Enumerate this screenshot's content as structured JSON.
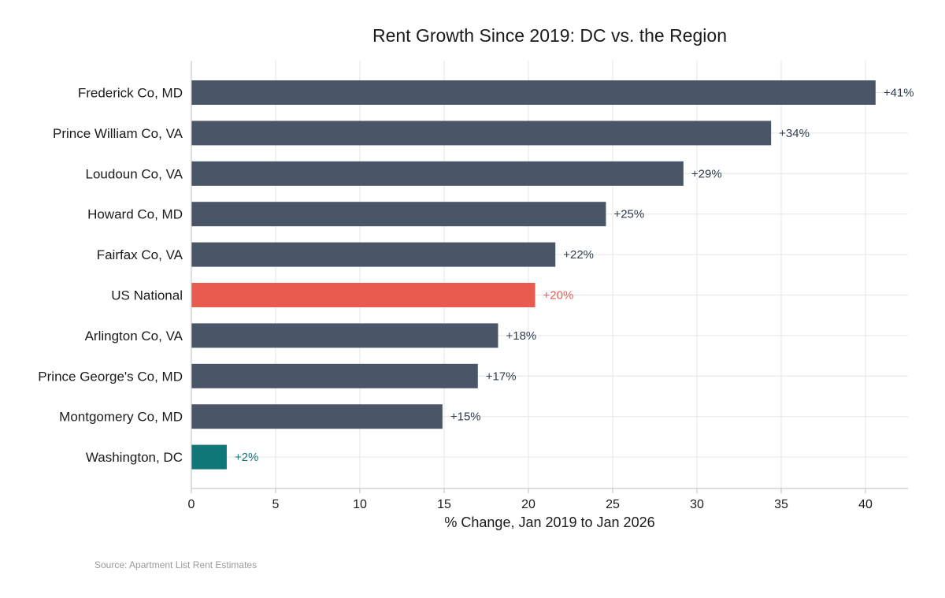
{
  "chart_data": {
    "type": "bar",
    "orientation": "horizontal",
    "title": "Rent Growth Since 2019: DC vs. the Region",
    "xlabel": "% Change, Jan 2019 to Jan 2026",
    "ylabel": "",
    "xlim": [
      0,
      42.5
    ],
    "xticks": [
      "0",
      "5",
      "10",
      "15",
      "20",
      "25",
      "30",
      "35",
      "40"
    ],
    "grid": true,
    "categories": [
      "Frederick Co, MD",
      "Prince William Co, VA",
      "Loudoun Co, VA",
      "Howard Co, MD",
      "Fairfax Co, VA",
      "US National",
      "Arlington Co, VA",
      "Prince George's Co, MD",
      "Montgomery Co, MD",
      "Washington, DC"
    ],
    "values": [
      40.6,
      34.4,
      29.2,
      24.6,
      21.6,
      20.4,
      18.2,
      17.0,
      14.9,
      2.1
    ],
    "data_labels": [
      "+41%",
      "+34%",
      "+29%",
      "+25%",
      "+22%",
      "+20%",
      "+18%",
      "+17%",
      "+15%",
      "+2%"
    ],
    "colors": [
      "#4a5568",
      "#4a5568",
      "#4a5568",
      "#4a5568",
      "#4a5568",
      "#e85c50",
      "#4a5568",
      "#4a5568",
      "#4a5568",
      "#0f7777"
    ],
    "label_colors": [
      "#2f3c4f",
      "#2f3c4f",
      "#2f3c4f",
      "#2f3c4f",
      "#2f3c4f",
      "#e85c50",
      "#2f3c4f",
      "#2f3c4f",
      "#2f3c4f",
      "#0f7777"
    ]
  },
  "source": "Source: Apartment List Rent Estimates"
}
